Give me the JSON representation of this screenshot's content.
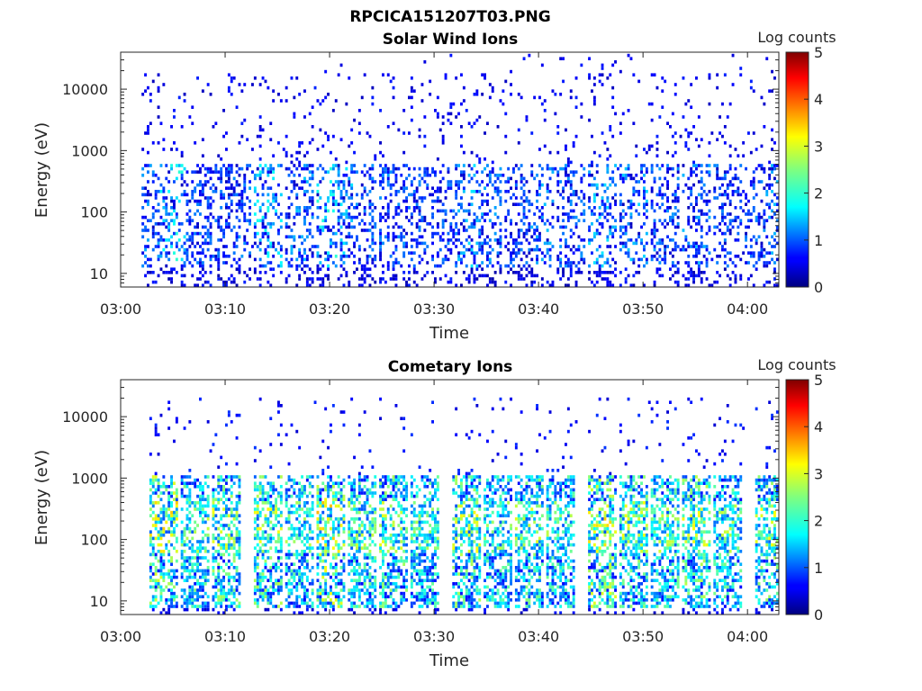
{
  "figure": {
    "title": "RPCICA151207T03.PNG"
  },
  "chart_data": [
    {
      "type": "heatmap",
      "title": "Solar Wind Ions",
      "xlabel": "Time",
      "ylabel": "Energy (eV)",
      "x_ticks": [
        "03:00",
        "03:10",
        "03:20",
        "03:30",
        "03:40",
        "03:50",
        "04:00"
      ],
      "x_range": [
        "03:00",
        "04:03"
      ],
      "y_scale": "log",
      "y_ticks": [
        "10",
        "100",
        "1000",
        "10000"
      ],
      "y_range": [
        6,
        40000
      ],
      "colorbar": {
        "label": "Log counts",
        "range": [
          0,
          5
        ],
        "ticks": [
          "0",
          "1",
          "2",
          "3",
          "4",
          "5"
        ],
        "colormap": "jet"
      },
      "bursts": [
        {
          "t": "03:03",
          "level": 1.2
        },
        {
          "t": "03:04",
          "level": 1.6
        },
        {
          "t": "03:05",
          "level": 1.8
        },
        {
          "t": "03:07",
          "level": 1.0
        },
        {
          "t": "03:09",
          "level": 1.0
        },
        {
          "t": "03:11",
          "level": 1.1
        },
        {
          "t": "03:14",
          "level": 1.7
        },
        {
          "t": "03:17",
          "level": 1.3
        },
        {
          "t": "03:20",
          "level": 1.8
        },
        {
          "t": "03:21",
          "level": 1.5
        },
        {
          "t": "03:23",
          "level": 1.1
        },
        {
          "t": "03:26",
          "level": 1.1
        },
        {
          "t": "03:28",
          "level": 1.0
        },
        {
          "t": "03:31",
          "level": 1.0
        },
        {
          "t": "03:33",
          "level": 1.5
        },
        {
          "t": "03:35",
          "level": 1.2
        },
        {
          "t": "03:38",
          "level": 1.0
        },
        {
          "t": "03:40",
          "level": 1.3
        },
        {
          "t": "03:43",
          "level": 1.1
        },
        {
          "t": "03:46",
          "level": 1.5
        },
        {
          "t": "03:49",
          "level": 1.4
        },
        {
          "t": "03:52",
          "level": 1.1
        },
        {
          "t": "03:55",
          "level": 1.3
        },
        {
          "t": "03:58",
          "level": 1.0
        },
        {
          "t": "04:01",
          "level": 1.1
        },
        {
          "t": "04:02",
          "level": 1.3
        }
      ]
    },
    {
      "type": "heatmap",
      "title": "Cometary Ions",
      "xlabel": "Time",
      "ylabel": "Energy (eV)",
      "x_ticks": [
        "03:00",
        "03:10",
        "03:20",
        "03:30",
        "03:40",
        "03:50",
        "04:00"
      ],
      "x_range": [
        "03:00",
        "04:03"
      ],
      "y_scale": "log",
      "y_ticks": [
        "10",
        "100",
        "1000",
        "10000"
      ],
      "y_range": [
        6,
        40000
      ],
      "colorbar": {
        "label": "Log counts",
        "range": [
          0,
          5
        ],
        "ticks": [
          "0",
          "1",
          "2",
          "3",
          "4",
          "5"
        ],
        "colormap": "jet"
      },
      "bursts": [
        {
          "t": "03:04",
          "level": 2.8
        },
        {
          "t": "03:07",
          "level": 2.3
        },
        {
          "t": "03:10",
          "level": 2.5
        },
        {
          "t": "03:14",
          "level": 2.6
        },
        {
          "t": "03:17",
          "level": 2.2
        },
        {
          "t": "03:20",
          "level": 2.9
        },
        {
          "t": "03:23",
          "level": 2.3
        },
        {
          "t": "03:26",
          "level": 2.5
        },
        {
          "t": "03:29",
          "level": 2.2
        },
        {
          "t": "03:33",
          "level": 2.6
        },
        {
          "t": "03:36",
          "level": 2.2
        },
        {
          "t": "03:39",
          "level": 2.4
        },
        {
          "t": "03:42",
          "level": 2.2
        },
        {
          "t": "03:46",
          "level": 2.8
        },
        {
          "t": "03:49",
          "level": 2.5
        },
        {
          "t": "03:52",
          "level": 2.3
        },
        {
          "t": "03:55",
          "level": 2.6
        },
        {
          "t": "03:58",
          "level": 2.3
        },
        {
          "t": "04:02",
          "level": 2.5
        }
      ]
    }
  ]
}
